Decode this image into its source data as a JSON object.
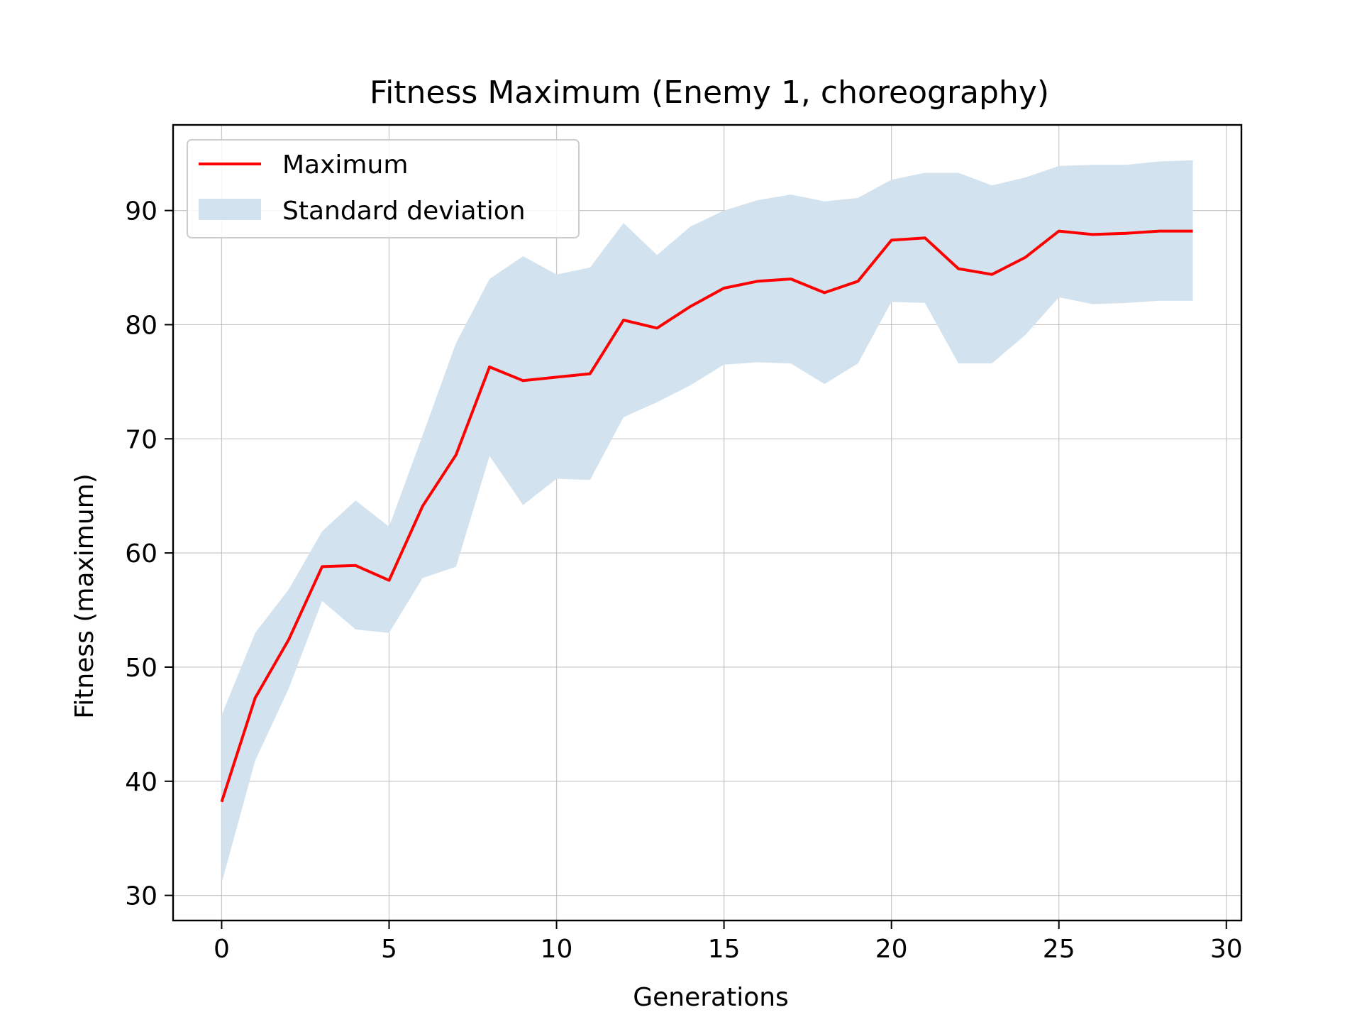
{
  "chart_data": {
    "type": "line",
    "title": "Fitness Maximum (Enemy 1, choreography)",
    "xlabel": "Generations",
    "ylabel": "Fitness (maximum)",
    "xlim": [
      -1.45,
      30.45
    ],
    "ylim": [
      27.8,
      97.5
    ],
    "xticks": [
      0,
      5,
      10,
      15,
      20,
      25,
      30
    ],
    "yticks": [
      30,
      40,
      50,
      60,
      70,
      80,
      90
    ],
    "grid": true,
    "legend_position": "top-left",
    "x": [
      0,
      1,
      2,
      3,
      4,
      5,
      6,
      7,
      8,
      9,
      10,
      11,
      12,
      13,
      14,
      15,
      16,
      17,
      18,
      19,
      20,
      21,
      22,
      23,
      24,
      25,
      26,
      27,
      28,
      29
    ],
    "series": [
      {
        "name": "Maximum",
        "color": "#ff0000",
        "values": [
          38.2,
          47.3,
          52.4,
          58.8,
          58.9,
          57.6,
          64.1,
          68.6,
          76.3,
          75.1,
          75.4,
          75.7,
          80.4,
          79.7,
          81.6,
          83.2,
          83.8,
          84.0,
          82.8,
          83.8,
          87.4,
          87.6,
          84.9,
          84.4,
          85.9,
          88.2,
          87.9,
          88.0,
          88.2,
          88.2
        ]
      }
    ],
    "band": {
      "name": "Standard deviation",
      "color": "#d2e2ee",
      "upper": [
        45.8,
        53.0,
        56.8,
        61.9,
        64.6,
        62.3,
        70.3,
        78.4,
        84.0,
        86.0,
        84.4,
        85.0,
        88.9,
        86.1,
        88.6,
        90.0,
        90.9,
        91.4,
        90.8,
        91.1,
        92.7,
        93.3,
        93.3,
        92.2,
        92.9,
        93.9,
        94.0,
        94.0,
        94.3,
        94.4
      ],
      "lower": [
        31.1,
        41.8,
        48.1,
        55.8,
        53.3,
        53.0,
        57.8,
        58.8,
        68.5,
        64.2,
        66.5,
        66.4,
        71.9,
        73.2,
        74.7,
        76.5,
        76.7,
        76.6,
        74.8,
        76.6,
        82.0,
        81.9,
        76.6,
        76.6,
        79.1,
        82.4,
        81.8,
        81.9,
        82.1,
        82.1
      ]
    }
  }
}
